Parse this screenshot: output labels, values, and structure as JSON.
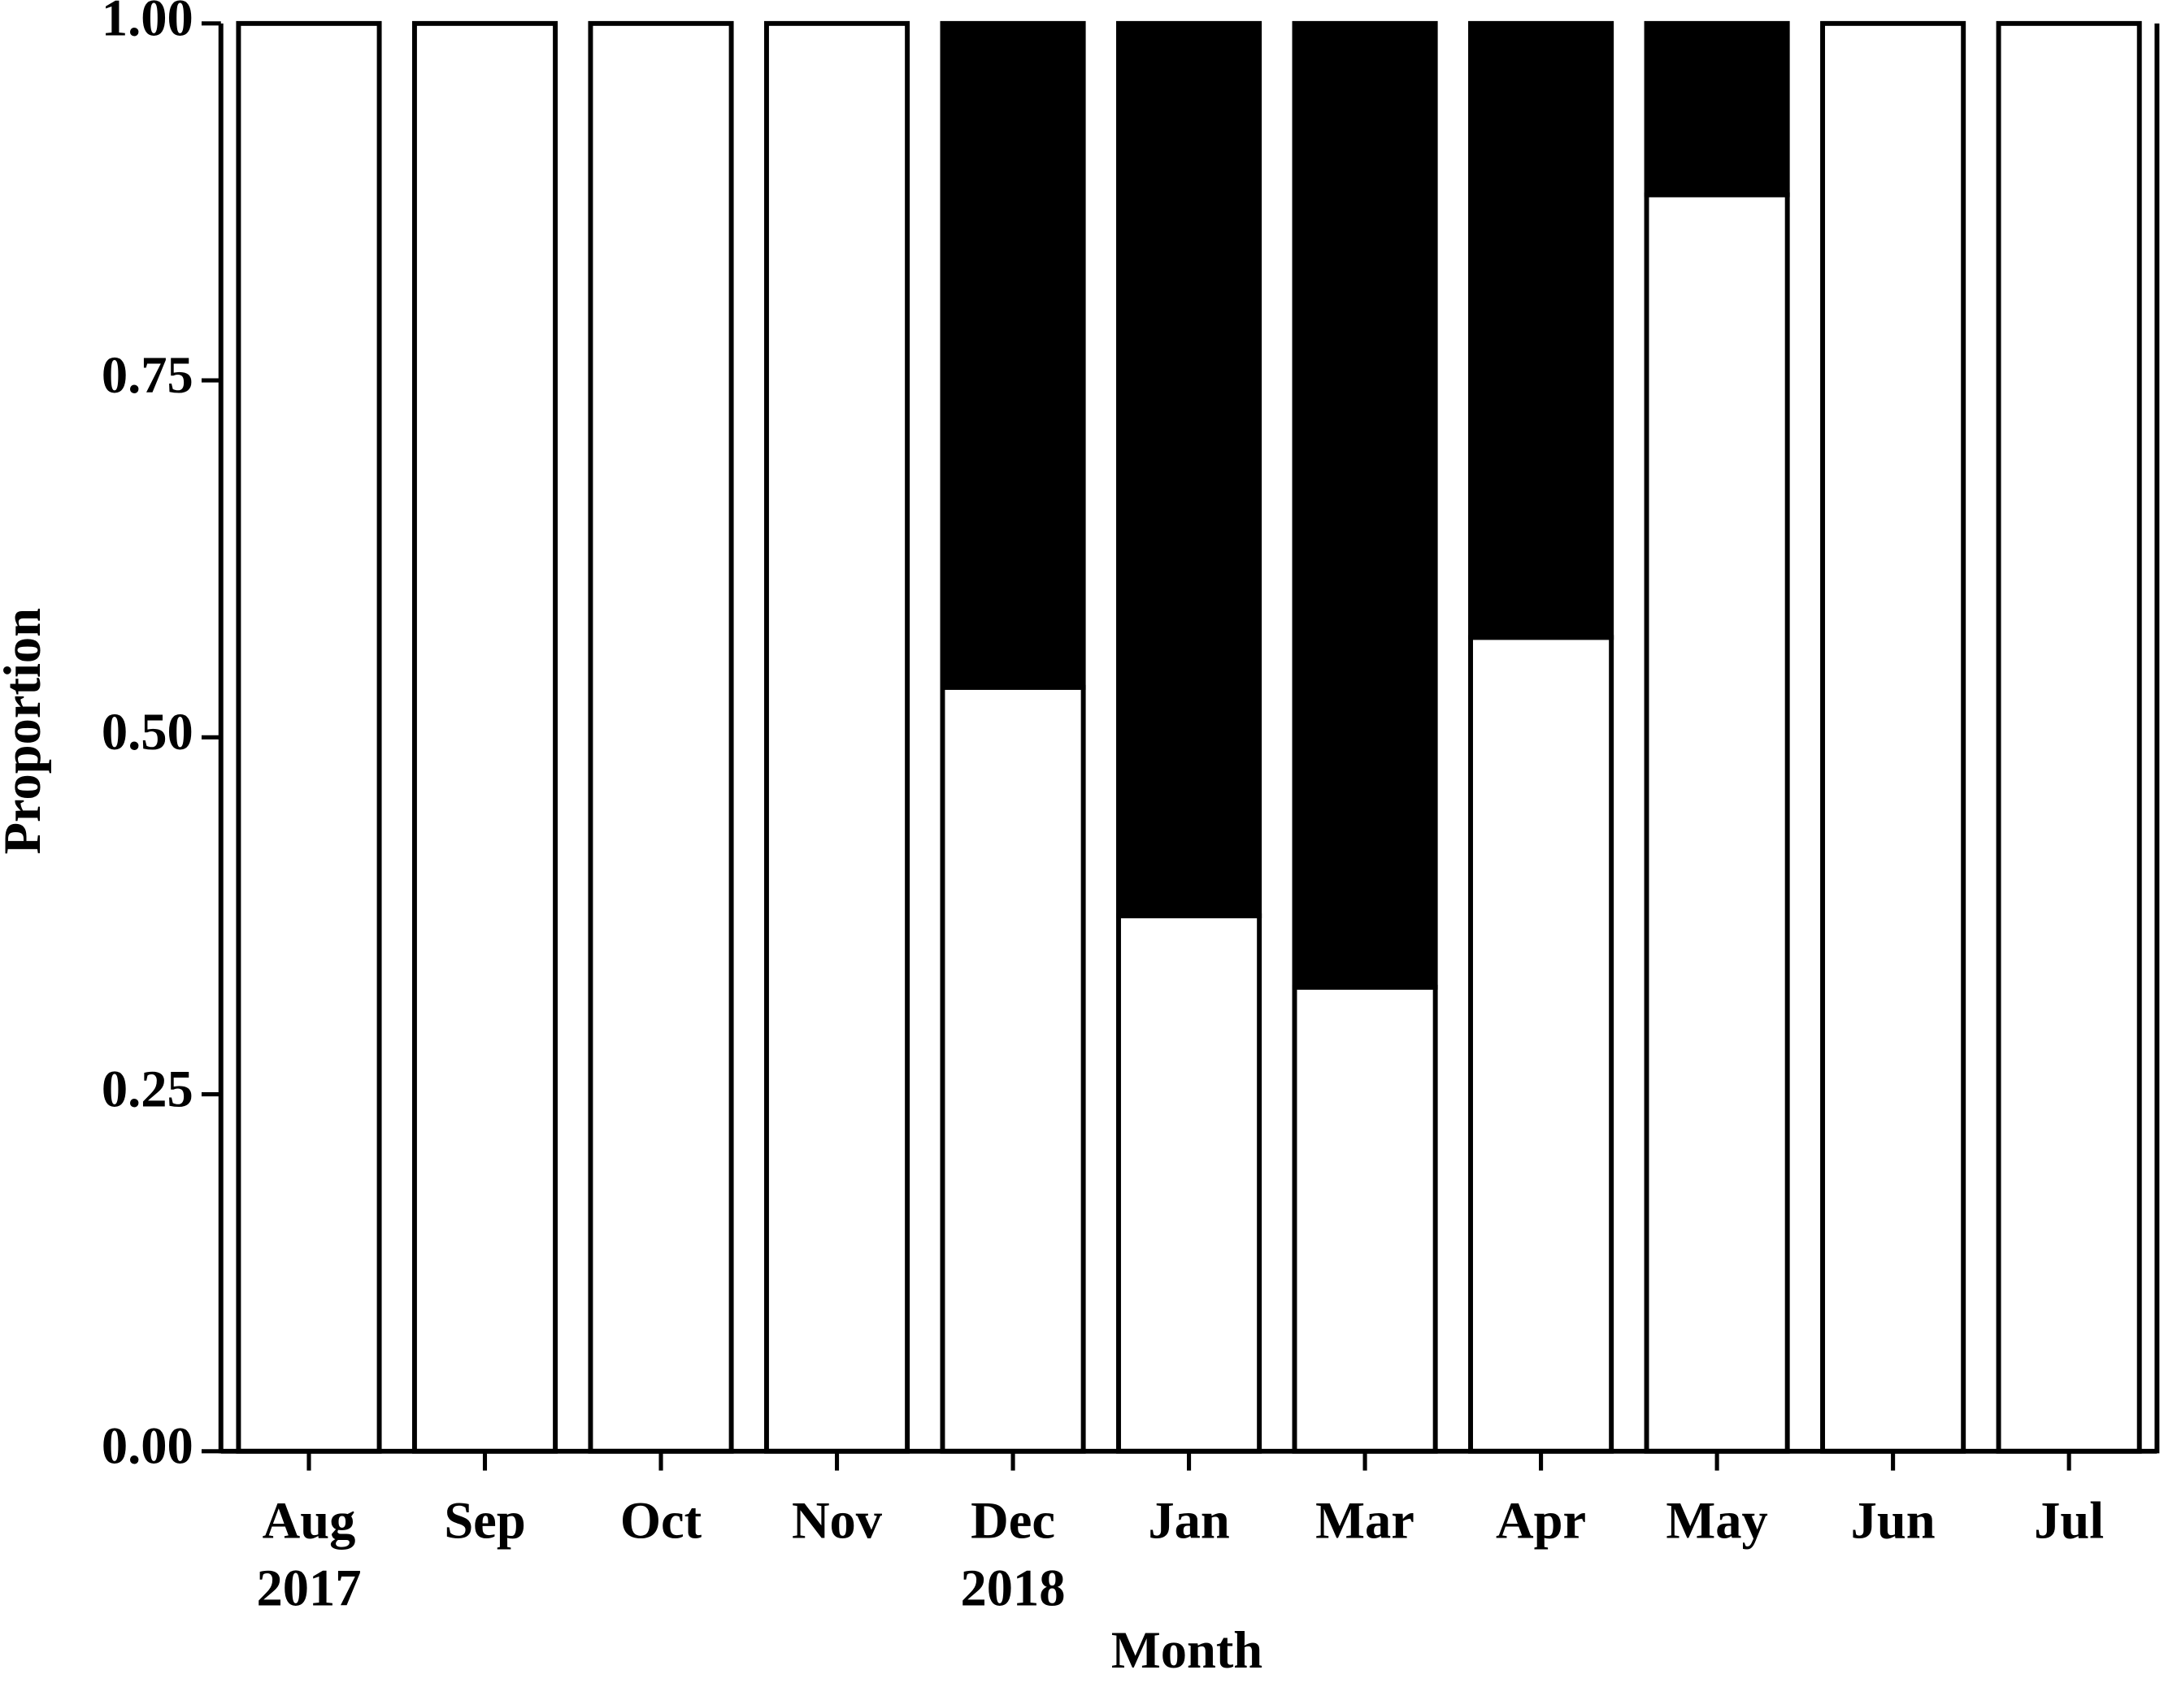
{
  "chart_data": {
    "type": "stacked_bar",
    "xlabel": "Month",
    "ylabel": "Proportion",
    "categories": [
      "Aug",
      "Sep",
      "Oct",
      "Nov",
      "Dec",
      "Jan",
      "Mar",
      "Apr",
      "May",
      "Jun",
      "Jul"
    ],
    "year_labels": [
      "2017",
      null,
      null,
      null,
      "2018",
      null,
      null,
      null,
      null,
      null,
      null
    ],
    "series": [
      {
        "color": "#ffffff",
        "values": [
          1,
          1,
          1,
          1,
          0.535,
          0.375,
          0.325,
          0.57,
          0.88,
          1,
          1
        ]
      },
      {
        "color": "#000000",
        "values": [
          0,
          0,
          0,
          0,
          0.465,
          0.625,
          0.675,
          0.43,
          0.12,
          0,
          0
        ]
      }
    ],
    "ylim": [
      0,
      1
    ],
    "yticks": [
      {
        "value": 0,
        "label": "0.00"
      },
      0.25,
      {
        "value": 0.5,
        "label": "0.50"
      },
      0.75,
      {
        "value": 1,
        "label": "1.00"
      }
    ]
  }
}
